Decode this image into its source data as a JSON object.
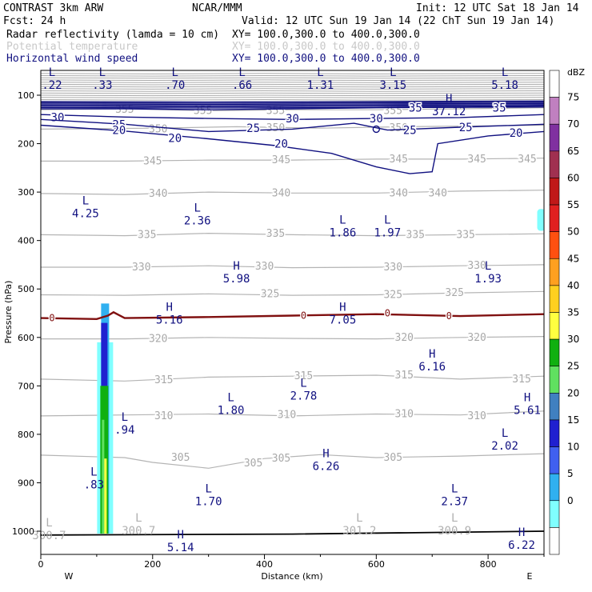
{
  "header": {
    "model": "CONTRAST  3km ARW",
    "org": "NCAR/MMM",
    "init": "Init: 12 UTC Sat 18 Jan 14",
    "fcst": "Fcst:   24 h",
    "valid": "Valid: 12 UTC Sun 19 Jan 14 (22 ChT Sun 19 Jan 14)"
  },
  "legend_rows": [
    {
      "field": "Radar reflectivity (lamda = 10 cm)",
      "xy": "XY= 100.0,300.0 to 400.0,300.0",
      "color": "#000000"
    },
    {
      "field": "Potential temperature",
      "xy": "XY= 100.0,300.0 to 400.0,300.0",
      "color": "#c8c8c8"
    },
    {
      "field": "Horizontal wind speed",
      "xy": "XY= 100.0,300.0 to 400.0,300.0",
      "color": "#101080"
    }
  ],
  "chart_data": {
    "type": "cross-section",
    "xlabel": "Distance (km)",
    "ylabel": "Pressure (hPa)",
    "xlim": [
      0,
      900
    ],
    "ylim": [
      1050,
      50
    ],
    "x_ticks": [
      0,
      200,
      400,
      600,
      800
    ],
    "y_ticks": [
      100,
      200,
      300,
      400,
      500,
      600,
      700,
      800,
      900,
      1000
    ],
    "left_end_label": "W",
    "right_end_label": "E",
    "colorbar": {
      "title": "dBZ",
      "levels": [
        75,
        70,
        65,
        60,
        55,
        50,
        45,
        40,
        35,
        30,
        25,
        20,
        15,
        10,
        5,
        0
      ],
      "colors": [
        "#ffffff",
        "#c080c0",
        "#8030a0",
        "#a03050",
        "#c01818",
        "#e02020",
        "#ff5010",
        "#ffa020",
        "#ffd020",
        "#ffff40",
        "#10b010",
        "#60e060",
        "#4080c0",
        "#2020d0",
        "#4060f0",
        "#30b0f0",
        "#80ffff",
        "#ffffff"
      ]
    },
    "theta_lines": [
      {
        "value": 355,
        "p": [
          [
            0,
            130
          ],
          [
            150,
            128
          ],
          [
            300,
            132
          ],
          [
            450,
            130
          ],
          [
            600,
            130
          ],
          [
            750,
            128
          ],
          [
            900,
            126
          ]
        ],
        "labels": [
          [
            150,
            130
          ],
          [
            290,
            132
          ],
          [
            420,
            132
          ],
          [
            630,
            132
          ]
        ]
      },
      {
        "value": 350,
        "p": [
          [
            0,
            170
          ],
          [
            200,
            168
          ],
          [
            350,
            165
          ],
          [
            500,
            168
          ],
          [
            650,
            165
          ],
          [
            900,
            162
          ]
        ],
        "labels": [
          [
            210,
            170
          ],
          [
            420,
            168
          ],
          [
            640,
            168
          ]
        ]
      },
      {
        "value": 345,
        "p": [
          [
            0,
            236
          ],
          [
            150,
            236
          ],
          [
            300,
            234
          ],
          [
            450,
            234
          ],
          [
            600,
            232
          ],
          [
            750,
            232
          ],
          [
            900,
            230
          ]
        ],
        "labels": [
          [
            200,
            236
          ],
          [
            430,
            234
          ],
          [
            640,
            232
          ],
          [
            780,
            232
          ],
          [
            870,
            232
          ]
        ]
      },
      {
        "value": 340,
        "p": [
          [
            0,
            303
          ],
          [
            150,
            305
          ],
          [
            300,
            300
          ],
          [
            450,
            302
          ],
          [
            600,
            302
          ],
          [
            750,
            298
          ],
          [
            900,
            296
          ]
        ],
        "labels": [
          [
            210,
            303
          ],
          [
            430,
            302
          ],
          [
            640,
            302
          ],
          [
            710,
            302
          ]
        ]
      },
      {
        "value": 335,
        "p": [
          [
            0,
            388
          ],
          [
            150,
            390
          ],
          [
            300,
            385
          ],
          [
            450,
            388
          ],
          [
            600,
            390
          ],
          [
            750,
            388
          ],
          [
            900,
            386
          ]
        ],
        "labels": [
          [
            190,
            388
          ],
          [
            420,
            386
          ],
          [
            670,
            388
          ],
          [
            760,
            388
          ]
        ]
      },
      {
        "value": 330,
        "p": [
          [
            0,
            455
          ],
          [
            150,
            455
          ],
          [
            300,
            452
          ],
          [
            450,
            456
          ],
          [
            600,
            455
          ],
          [
            750,
            452
          ],
          [
            900,
            450
          ]
        ],
        "labels": [
          [
            180,
            455
          ],
          [
            400,
            453
          ],
          [
            630,
            455
          ],
          [
            780,
            452
          ]
        ]
      },
      {
        "value": 325,
        "p": [
          [
            0,
            512
          ],
          [
            150,
            513
          ],
          [
            300,
            510
          ],
          [
            450,
            513
          ],
          [
            600,
            512
          ],
          [
            750,
            508
          ],
          [
            900,
            505
          ]
        ],
        "labels": [
          [
            410,
            510
          ],
          [
            630,
            512
          ],
          [
            740,
            508
          ]
        ]
      },
      {
        "value": 320,
        "p": [
          [
            0,
            603
          ],
          [
            150,
            603
          ],
          [
            300,
            600
          ],
          [
            450,
            602
          ],
          [
            600,
            603
          ],
          [
            750,
            600
          ],
          [
            900,
            598
          ]
        ],
        "labels": [
          [
            210,
            603
          ],
          [
            650,
            600
          ],
          [
            780,
            600
          ]
        ]
      },
      {
        "value": 315,
        "p": [
          [
            0,
            686
          ],
          [
            150,
            690
          ],
          [
            300,
            682
          ],
          [
            450,
            680
          ],
          [
            600,
            678
          ],
          [
            750,
            686
          ],
          [
            900,
            680
          ]
        ],
        "labels": [
          [
            220,
            688
          ],
          [
            470,
            680
          ],
          [
            650,
            678
          ],
          [
            860,
            686
          ]
        ]
      },
      {
        "value": 310,
        "p": [
          [
            0,
            762
          ],
          [
            150,
            760
          ],
          [
            300,
            758
          ],
          [
            450,
            762
          ],
          [
            600,
            758
          ],
          [
            750,
            760
          ],
          [
            900,
            752
          ]
        ],
        "labels": [
          [
            220,
            762
          ],
          [
            440,
            760
          ],
          [
            650,
            758
          ],
          [
            780,
            762
          ]
        ]
      },
      {
        "value": 305,
        "p": [
          [
            0,
            843
          ],
          [
            150,
            848
          ],
          [
            200,
            858
          ],
          [
            300,
            870
          ],
          [
            400,
            850
          ],
          [
            500,
            842
          ],
          [
            600,
            848
          ],
          [
            750,
            845
          ],
          [
            900,
            840
          ]
        ],
        "labels": [
          [
            250,
            848
          ],
          [
            380,
            860
          ],
          [
            430,
            850
          ],
          [
            630,
            848
          ]
        ]
      }
    ],
    "wind_lines": [
      {
        "value": 35,
        "p": [
          [
            0,
            128
          ],
          [
            150,
            128
          ],
          [
            300,
            130
          ],
          [
            450,
            128
          ],
          [
            600,
            126
          ],
          [
            750,
            125
          ],
          [
            900,
            122
          ]
        ],
        "labels": [
          [
            670,
            126
          ],
          [
            820,
            126
          ]
        ]
      },
      {
        "value": 30,
        "p": [
          [
            0,
            140
          ],
          [
            150,
            145
          ],
          [
            300,
            148
          ],
          [
            450,
            150
          ],
          [
            600,
            148
          ],
          [
            750,
            146
          ],
          [
            900,
            140
          ]
        ],
        "labels": [
          [
            30,
            145
          ],
          [
            450,
            148
          ],
          [
            600,
            148
          ]
        ]
      },
      {
        "value": 25,
        "p": [
          [
            0,
            150
          ],
          [
            150,
            160
          ],
          [
            300,
            175
          ],
          [
            450,
            170
          ],
          [
            560,
            158
          ],
          [
            620,
            172
          ],
          [
            750,
            166
          ],
          [
            900,
            160
          ]
        ],
        "labels": [
          [
            140,
            160
          ],
          [
            380,
            168
          ],
          [
            660,
            172
          ],
          [
            760,
            166
          ]
        ]
      },
      {
        "value": 20,
        "p": [
          [
            0,
            162
          ],
          [
            150,
            174
          ],
          [
            300,
            190
          ],
          [
            420,
            204
          ],
          [
            520,
            220
          ],
          [
            600,
            248
          ],
          [
            660,
            262
          ],
          [
            700,
            258
          ],
          [
            710,
            200
          ],
          [
            800,
            184
          ],
          [
            900,
            175
          ]
        ],
        "labels": [
          [
            140,
            172
          ],
          [
            240,
            188
          ],
          [
            430,
            200
          ],
          [
            850,
            178
          ]
        ]
      }
    ],
    "zero_line": {
      "value": 0,
      "p": [
        [
          0,
          560
        ],
        [
          100,
          562
        ],
        [
          120,
          555
        ],
        [
          130,
          548
        ],
        [
          150,
          560
        ],
        [
          300,
          558
        ],
        [
          450,
          555
        ],
        [
          600,
          552
        ],
        [
          750,
          556
        ],
        [
          900,
          552
        ]
      ],
      "labels": [
        [
          20,
          560
        ],
        [
          470,
          555
        ],
        [
          620,
          550
        ],
        [
          730,
          556
        ]
      ]
    },
    "surface_line": {
      "p": [
        [
          0,
          1008
        ],
        [
          450,
          1006
        ],
        [
          900,
          1000
        ]
      ]
    },
    "markers": [
      {
        "t": "L",
        "v": ".22",
        "x": 20,
        "p": 60
      },
      {
        "t": "L",
        "v": ".33",
        "x": 110,
        "p": 60
      },
      {
        "t": "L",
        "v": ".70",
        "x": 240,
        "p": 60
      },
      {
        "t": "L",
        "v": ".66",
        "x": 360,
        "p": 60
      },
      {
        "t": "L",
        "v": "1.31",
        "x": 500,
        "p": 60
      },
      {
        "t": "L",
        "v": "3.15",
        "x": 630,
        "p": 60
      },
      {
        "t": "L",
        "v": "5.18",
        "x": 830,
        "p": 60
      },
      {
        "t": "H",
        "v": "37.12",
        "x": 730,
        "p": 115
      },
      {
        "t": "L",
        "v": "4.25",
        "x": 80,
        "p": 325
      },
      {
        "t": "L",
        "v": "2.36",
        "x": 280,
        "p": 340
      },
      {
        "t": "L",
        "v": "1.86",
        "x": 540,
        "p": 365
      },
      {
        "t": "L",
        "v": "1.97",
        "x": 620,
        "p": 365
      },
      {
        "t": "H",
        "v": "5.98",
        "x": 350,
        "p": 460
      },
      {
        "t": "L",
        "v": "1.93",
        "x": 800,
        "p": 460
      },
      {
        "t": "H",
        "v": "5.16",
        "x": 230,
        "p": 545
      },
      {
        "t": "H",
        "v": "7.05",
        "x": 540,
        "p": 545
      },
      {
        "t": "H",
        "v": "6.16",
        "x": 700,
        "p": 642
      },
      {
        "t": "L",
        "v": "2.78",
        "x": 470,
        "p": 702
      },
      {
        "t": "L",
        "v": "1.80",
        "x": 340,
        "p": 732
      },
      {
        "t": "H",
        "v": "5.61",
        "x": 870,
        "p": 732
      },
      {
        "t": "L",
        "v": ".94",
        "x": 150,
        "p": 772
      },
      {
        "t": "L",
        "v": "2.02",
        "x": 830,
        "p": 805
      },
      {
        "t": "H",
        "v": "6.26",
        "x": 510,
        "p": 847
      },
      {
        "t": "L",
        "v": ".83",
        "x": 95,
        "p": 885
      },
      {
        "t": "L",
        "v": "1.70",
        "x": 300,
        "p": 920
      },
      {
        "t": "L",
        "v": "2.37",
        "x": 740,
        "p": 920
      },
      {
        "t": "L",
        "v": "300.7",
        "x": 15,
        "p": 990,
        "faint": true
      },
      {
        "t": "L",
        "v": "300.7",
        "x": 175,
        "p": 980,
        "faint": true
      },
      {
        "t": "L",
        "v": "301.2",
        "x": 570,
        "p": 980,
        "faint": true
      },
      {
        "t": "L",
        "v": "300.9",
        "x": 740,
        "p": 980,
        "faint": true
      },
      {
        "t": "H",
        "v": "5.14",
        "x": 250,
        "p": 1015
      },
      {
        "t": "H",
        "v": "6.22",
        "x": 860,
        "p": 1010
      }
    ],
    "reflectivity_column": {
      "x_center": 115,
      "p_top": 530,
      "p_bottom": 1005,
      "max_dbz": 35
    },
    "edge_echo": {
      "x": 895,
      "p_top": 335,
      "p_bottom": 380,
      "dbz": 5
    }
  }
}
